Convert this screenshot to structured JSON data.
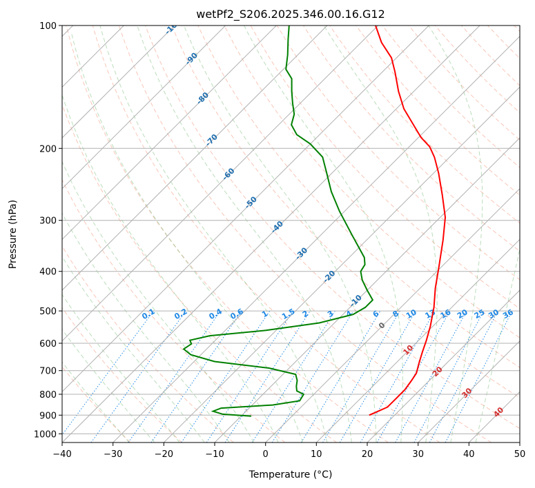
{
  "chart_data": {
    "type": "line",
    "title": "wetPf2_S206.2025.346.00.16.G12",
    "xlabel": "Temperature (°C)",
    "ylabel": "Pressure (hPa)",
    "xlim": [
      -40,
      50
    ],
    "ylim": [
      1050,
      100
    ],
    "y_scale": "log",
    "x_ticks": [
      {
        "value": -40,
        "label": "−40"
      },
      {
        "value": -30,
        "label": "−30"
      },
      {
        "value": -20,
        "label": "−20"
      },
      {
        "value": -10,
        "label": "−10"
      },
      {
        "value": 0,
        "label": "0"
      },
      {
        "value": 10,
        "label": "10"
      },
      {
        "value": 20,
        "label": "20"
      },
      {
        "value": 30,
        "label": "30"
      },
      {
        "value": 40,
        "label": "40"
      },
      {
        "value": 50,
        "label": "50"
      }
    ],
    "y_ticks": [
      {
        "value": 100,
        "label": "100"
      },
      {
        "value": 200,
        "label": "200"
      },
      {
        "value": 300,
        "label": "300"
      },
      {
        "value": 400,
        "label": "400"
      },
      {
        "value": 500,
        "label": "500"
      },
      {
        "value": 600,
        "label": "600"
      },
      {
        "value": 700,
        "label": "700"
      },
      {
        "value": 800,
        "label": "800"
      },
      {
        "value": 900,
        "label": "900"
      },
      {
        "value": 1000,
        "label": "1000"
      }
    ],
    "skew_factor": 1.2,
    "isotherm_labels": [
      {
        "t": -100,
        "p": 100,
        "text": "-100"
      },
      {
        "t": -90,
        "p": 120,
        "text": "-90"
      },
      {
        "t": -80,
        "p": 150,
        "text": "-80"
      },
      {
        "t": -70,
        "p": 190,
        "text": "-70"
      },
      {
        "t": -60,
        "p": 230,
        "text": "-60"
      },
      {
        "t": -50,
        "p": 270,
        "text": "-50"
      },
      {
        "t": -40,
        "p": 310,
        "text": "-40"
      },
      {
        "t": -30,
        "p": 360,
        "text": "-30"
      },
      {
        "t": -20,
        "p": 410,
        "text": "-20"
      },
      {
        "t": -10,
        "p": 470,
        "text": "-10"
      },
      {
        "t": 0,
        "p": 540,
        "text": "0"
      },
      {
        "t": 10,
        "p": 620,
        "text": "10"
      },
      {
        "t": 20,
        "p": 700,
        "text": "20"
      },
      {
        "t": 30,
        "p": 790,
        "text": "30"
      },
      {
        "t": 40,
        "p": 880,
        "text": "40"
      }
    ],
    "mixing_ratio_labels": [
      "0.1",
      "0.2",
      "0.4",
      "0.6",
      "1",
      "1.5",
      "2",
      "3",
      "4",
      "6",
      "8",
      "10",
      "13",
      "16",
      "20",
      "25",
      "30",
      "36"
    ],
    "series": [
      {
        "name": "temperature",
        "color": "#ff0000",
        "points": [
          [
            15.0,
            900
          ],
          [
            16.0,
            880
          ],
          [
            17.0,
            860
          ],
          [
            17.0,
            820
          ],
          [
            17.0,
            780
          ],
          [
            16.5,
            740
          ],
          [
            16.0,
            710
          ],
          [
            14.5,
            670
          ],
          [
            13.0,
            630
          ],
          [
            11.5,
            590
          ],
          [
            9.5,
            545
          ],
          [
            6.5,
            490
          ],
          [
            3.0,
            440
          ],
          [
            -0.5,
            390
          ],
          [
            -5.0,
            335
          ],
          [
            -9.0,
            295
          ],
          [
            -14.0,
            260
          ],
          [
            -19.0,
            230
          ],
          [
            -23.0,
            210
          ],
          [
            -26.0,
            198
          ],
          [
            -29.5,
            188
          ],
          [
            -33.5,
            175
          ],
          [
            -38.5,
            160
          ],
          [
            -43.0,
            145
          ],
          [
            -47.5,
            130
          ],
          [
            -51.0,
            120
          ],
          [
            -56.0,
            110
          ],
          [
            -60.5,
            100
          ]
        ]
      },
      {
        "name": "dewpoint",
        "color": "#008000",
        "points": [
          [
            -8.0,
            905
          ],
          [
            -14.0,
            895
          ],
          [
            -16.5,
            880
          ],
          [
            -15.5,
            865
          ],
          [
            -6.0,
            850
          ],
          [
            -1.5,
            830
          ],
          [
            -2.0,
            800
          ],
          [
            -4.0,
            785
          ],
          [
            -5.0,
            765
          ],
          [
            -6.0,
            740
          ],
          [
            -7.5,
            715
          ],
          [
            -14.0,
            690
          ],
          [
            -26.0,
            665
          ],
          [
            -32.0,
            640
          ],
          [
            -34.5,
            620
          ],
          [
            -34.0,
            602
          ],
          [
            -35.0,
            590
          ],
          [
            -32.0,
            575
          ],
          [
            -22.0,
            558
          ],
          [
            -13.0,
            535
          ],
          [
            -8.0,
            510
          ],
          [
            -7.0,
            490
          ],
          [
            -7.0,
            470
          ],
          [
            -10.0,
            445
          ],
          [
            -13.0,
            420
          ],
          [
            -15.0,
            400
          ],
          [
            -15.5,
            385
          ],
          [
            -17.0,
            370
          ],
          [
            -24.0,
            325
          ],
          [
            -31.0,
            285
          ],
          [
            -36.5,
            255
          ],
          [
            -41.0,
            230
          ],
          [
            -45.0,
            210
          ],
          [
            -50.0,
            195
          ],
          [
            -54.5,
            185
          ],
          [
            -57.5,
            175
          ],
          [
            -59.0,
            165
          ],
          [
            -61.5,
            155
          ],
          [
            -64.0,
            145
          ],
          [
            -66.5,
            135
          ],
          [
            -69.5,
            128
          ],
          [
            -72.0,
            118
          ],
          [
            -75.0,
            108
          ],
          [
            -77.5,
            100
          ]
        ]
      }
    ]
  }
}
